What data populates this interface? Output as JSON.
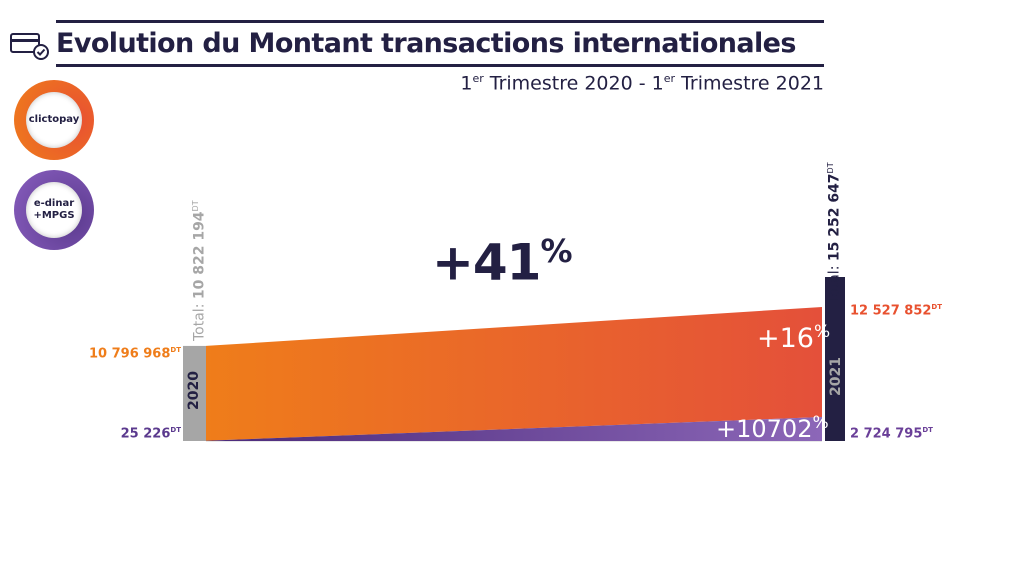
{
  "header": {
    "title": "Evolution du Montant transactions internationales",
    "subtitle_part1": "1",
    "subtitle_sup1": "er",
    "subtitle_part2": " Trimestre 2020 - 1",
    "subtitle_sup2": "er",
    "subtitle_part3": " Trimestre 2021"
  },
  "legend": {
    "clictopay": "clictopay",
    "edinar_line1": "e-dinar",
    "edinar_line2": "+MPGS"
  },
  "unit": "DT",
  "chart_data": {
    "type": "area",
    "title": "Evolution du Montant transactions internationales",
    "x": [
      "2020",
      "2021"
    ],
    "series": [
      {
        "name": "clictopay",
        "values": [
          10796968,
          12527852
        ],
        "labels": [
          "10 796 968",
          "12 527 852"
        ],
        "growth": "+16",
        "color": "#e8512f"
      },
      {
        "name": "e-dinar +MPGS",
        "values": [
          25226,
          2724795
        ],
        "labels": [
          "25 226",
          "2 724 795"
        ],
        "growth": "+10702",
        "color": "#6a3f98"
      }
    ],
    "totals": [
      {
        "year": "2020",
        "prefix": "Total: ",
        "value": 10822194,
        "label": "10 822 194"
      },
      {
        "year": "2021",
        "prefix": "Total: ",
        "value": 15252647,
        "label": "15 252 647"
      }
    ],
    "total_growth": "+41",
    "percent_sign": "%",
    "colors": {
      "orange": "#ef7d1a",
      "red_orange": "#e8512f",
      "purple": "#6a3f98",
      "navy": "#232043",
      "gray": "#a6a6a6"
    }
  }
}
